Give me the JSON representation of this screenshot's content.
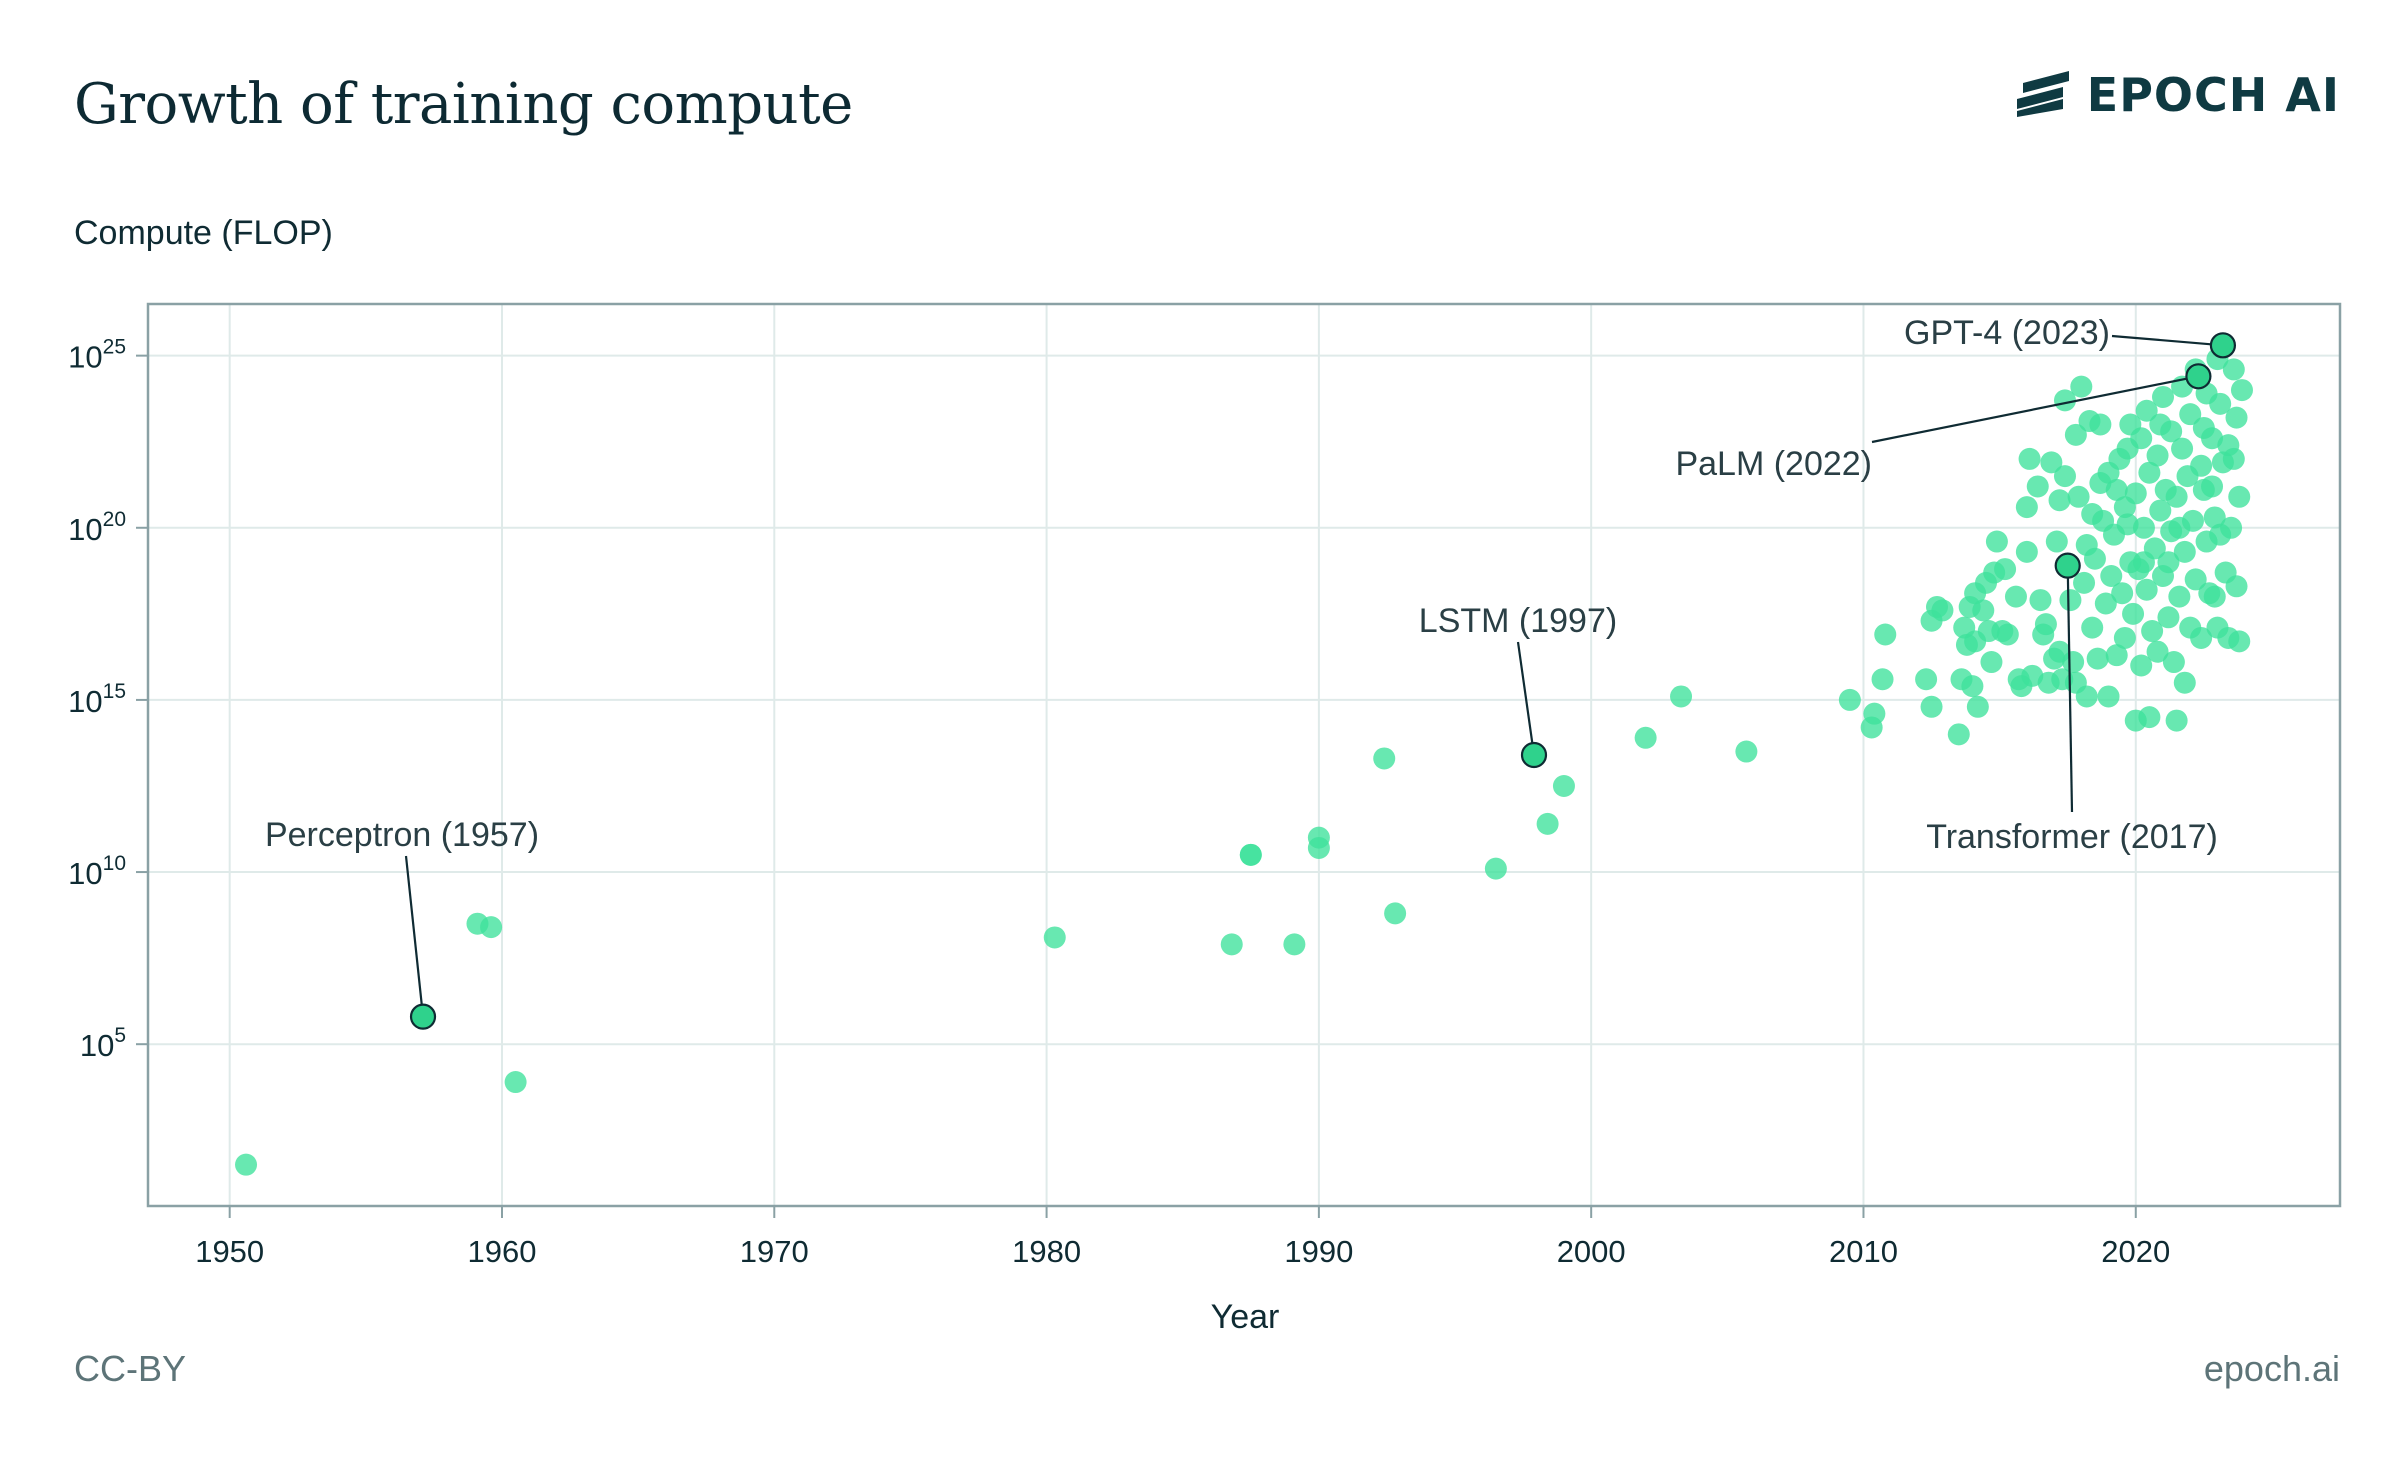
{
  "header": {
    "title": "Growth of training compute",
    "logo_text": "EPOCH AI"
  },
  "footer": {
    "license": "CC-BY",
    "site": "epoch.ai"
  },
  "colors": {
    "point": "#3ee29b",
    "point_highlight": "#2fd28c",
    "grid": "#dfeae9",
    "frame": "#8aa1a5",
    "text": "#0f2b33"
  },
  "chart_data": {
    "type": "scatter",
    "title": "Growth of training compute",
    "xlabel": "Year",
    "ylabel": "Compute (FLOP)",
    "xlim": [
      1947,
      2027.5
    ],
    "ylim_log10": [
      0.3,
      26.5
    ],
    "x_ticks": [
      "1950",
      "1960",
      "1970",
      "1980",
      "1990",
      "2000",
      "2010",
      "2020"
    ],
    "y_ticks": [
      {
        "base": "10",
        "exp": "25",
        "value": 25
      },
      {
        "base": "10",
        "exp": "20",
        "value": 20
      },
      {
        "base": "10",
        "exp": "15",
        "value": 15
      },
      {
        "base": "10",
        "exp": "10",
        "value": 10
      },
      {
        "base": "10",
        "exp": "5",
        "value": 5
      }
    ],
    "y_scale": "log",
    "grid": true,
    "annotations": [
      {
        "label": "GPT-4 (2023)",
        "x": 2023.2,
        "log10y": 25.3
      },
      {
        "label": "PaLM (2022)",
        "x": 2022.3,
        "log10y": 24.4
      },
      {
        "label": "Transformer (2017)",
        "x": 2017.5,
        "log10y": 18.9
      },
      {
        "label": "LSTM (1997)",
        "x": 1997.9,
        "log10y": 13.4
      },
      {
        "label": "Perceptron (1957)",
        "x": 1957.1,
        "log10y": 5.8
      }
    ],
    "points": [
      [
        1950.6,
        1.5
      ],
      [
        1957.1,
        5.8
      ],
      [
        1959.1,
        8.5
      ],
      [
        1959.6,
        8.4
      ],
      [
        1960.5,
        3.9
      ],
      [
        1980.3,
        8.1
      ],
      [
        1986.8,
        7.9
      ],
      [
        1987.5,
        10.5
      ],
      [
        1987.5,
        10.5
      ],
      [
        1989.1,
        7.9
      ],
      [
        1990.0,
        11.0
      ],
      [
        1990.0,
        10.7
      ],
      [
        1992.4,
        13.3
      ],
      [
        1992.8,
        8.8
      ],
      [
        1996.5,
        10.1
      ],
      [
        1997.9,
        13.4
      ],
      [
        1998.4,
        11.4
      ],
      [
        1999.0,
        12.5
      ],
      [
        2002.0,
        13.9
      ],
      [
        2003.3,
        15.1
      ],
      [
        2005.7,
        13.5
      ],
      [
        2009.5,
        15.0
      ],
      [
        2010.3,
        14.2
      ],
      [
        2010.4,
        14.6
      ],
      [
        2010.7,
        15.6
      ],
      [
        2010.8,
        16.9
      ],
      [
        2012.3,
        15.6
      ],
      [
        2012.5,
        14.8
      ],
      [
        2012.5,
        17.3
      ],
      [
        2012.7,
        17.7
      ],
      [
        2012.9,
        17.6
      ],
      [
        2013.5,
        14.0
      ],
      [
        2013.6,
        15.6
      ],
      [
        2013.7,
        17.1
      ],
      [
        2013.8,
        16.6
      ],
      [
        2013.9,
        17.7
      ],
      [
        2014.0,
        15.4
      ],
      [
        2014.1,
        16.7
      ],
      [
        2014.1,
        18.1
      ],
      [
        2014.2,
        14.8
      ],
      [
        2014.4,
        17.6
      ],
      [
        2014.5,
        18.4
      ],
      [
        2014.6,
        17.0
      ],
      [
        2014.8,
        18.7
      ],
      [
        2014.9,
        19.6
      ],
      [
        2015.1,
        17.0
      ],
      [
        2015.3,
        16.9
      ],
      [
        2015.6,
        18.0
      ],
      [
        2015.7,
        15.6
      ],
      [
        2015.8,
        15.4
      ],
      [
        2016.0,
        19.3
      ],
      [
        2016.0,
        20.6
      ],
      [
        2016.2,
        15.7
      ],
      [
        2016.4,
        21.2
      ],
      [
        2016.6,
        16.9
      ],
      [
        2016.7,
        17.2
      ],
      [
        2016.8,
        15.5
      ],
      [
        2016.9,
        21.9
      ],
      [
        2017.0,
        16.2
      ],
      [
        2017.1,
        19.6
      ],
      [
        2017.2,
        20.8
      ],
      [
        2017.2,
        16.4
      ],
      [
        2017.3,
        15.6
      ],
      [
        2017.4,
        21.5
      ],
      [
        2017.4,
        23.7
      ],
      [
        2017.6,
        17.9
      ],
      [
        2017.7,
        16.1
      ],
      [
        2017.8,
        15.5
      ],
      [
        2017.9,
        20.9
      ],
      [
        2018.0,
        24.1
      ],
      [
        2018.1,
        18.4
      ],
      [
        2018.2,
        19.5
      ],
      [
        2018.2,
        15.1
      ],
      [
        2018.3,
        23.1
      ],
      [
        2018.4,
        17.1
      ],
      [
        2018.5,
        19.1
      ],
      [
        2018.6,
        16.2
      ],
      [
        2018.7,
        21.3
      ],
      [
        2018.8,
        20.2
      ],
      [
        2018.9,
        17.8
      ],
      [
        2019.0,
        21.6
      ],
      [
        2019.0,
        15.1
      ],
      [
        2019.1,
        18.6
      ],
      [
        2019.2,
        19.8
      ],
      [
        2019.3,
        16.3
      ],
      [
        2019.4,
        22.0
      ],
      [
        2019.5,
        18.1
      ],
      [
        2019.6,
        20.6
      ],
      [
        2019.6,
        16.8
      ],
      [
        2019.7,
        22.3
      ],
      [
        2019.8,
        19.0
      ],
      [
        2019.8,
        23.0
      ],
      [
        2019.9,
        17.5
      ],
      [
        2020.0,
        21.0
      ],
      [
        2020.0,
        14.4
      ],
      [
        2020.1,
        18.8
      ],
      [
        2020.2,
        22.6
      ],
      [
        2020.2,
        16.0
      ],
      [
        2020.3,
        20.0
      ],
      [
        2020.4,
        23.4
      ],
      [
        2020.4,
        18.2
      ],
      [
        2020.5,
        21.6
      ],
      [
        2020.5,
        14.5
      ],
      [
        2020.6,
        17.0
      ],
      [
        2020.7,
        19.4
      ],
      [
        2020.8,
        22.1
      ],
      [
        2020.8,
        16.4
      ],
      [
        2020.9,
        20.5
      ],
      [
        2021.0,
        23.8
      ],
      [
        2021.0,
        18.6
      ],
      [
        2021.1,
        21.1
      ],
      [
        2021.2,
        17.4
      ],
      [
        2021.3,
        19.9
      ],
      [
        2021.3,
        22.8
      ],
      [
        2021.4,
        16.1
      ],
      [
        2021.5,
        20.9
      ],
      [
        2021.5,
        14.4
      ],
      [
        2021.6,
        18.0
      ],
      [
        2021.7,
        22.3
      ],
      [
        2021.7,
        24.1
      ],
      [
        2021.8,
        19.3
      ],
      [
        2021.8,
        15.5
      ],
      [
        2021.9,
        21.5
      ],
      [
        2022.0,
        17.1
      ],
      [
        2022.0,
        23.3
      ],
      [
        2022.1,
        20.2
      ],
      [
        2022.2,
        24.6
      ],
      [
        2022.2,
        18.5
      ],
      [
        2022.3,
        24.4
      ],
      [
        2022.4,
        21.8
      ],
      [
        2022.4,
        16.8
      ],
      [
        2022.5,
        22.9
      ],
      [
        2022.6,
        19.6
      ],
      [
        2022.6,
        23.9
      ],
      [
        2022.7,
        18.1
      ],
      [
        2022.8,
        21.2
      ],
      [
        2022.8,
        22.6
      ],
      [
        2022.9,
        20.3
      ],
      [
        2023.0,
        24.9
      ],
      [
        2023.0,
        17.1
      ],
      [
        2023.1,
        19.8
      ],
      [
        2023.1,
        23.6
      ],
      [
        2023.2,
        25.3
      ],
      [
        2023.2,
        21.9
      ],
      [
        2023.3,
        18.7
      ],
      [
        2023.4,
        22.4
      ],
      [
        2023.4,
        16.8
      ],
      [
        2023.5,
        20.0
      ],
      [
        2023.6,
        24.6
      ],
      [
        2023.6,
        22.0
      ],
      [
        2023.7,
        23.2
      ],
      [
        2023.7,
        18.3
      ],
      [
        2023.8,
        20.9
      ],
      [
        2023.8,
        16.7
      ],
      [
        2023.9,
        24.0
      ],
      [
        2016.5,
        17.9
      ],
      [
        2015.2,
        18.8
      ],
      [
        2014.7,
        16.1
      ],
      [
        2016.1,
        22.0
      ],
      [
        2017.8,
        22.7
      ],
      [
        2018.7,
        23.0
      ],
      [
        2019.3,
        21.1
      ],
      [
        2020.9,
        23.0
      ],
      [
        2021.6,
        20.0
      ],
      [
        2022.5,
        21.1
      ],
      [
        2020.3,
        19.0
      ],
      [
        2019.7,
        20.1
      ],
      [
        2021.2,
        19.0
      ],
      [
        2022.9,
        18.0
      ],
      [
        2018.4,
        20.4
      ]
    ]
  }
}
